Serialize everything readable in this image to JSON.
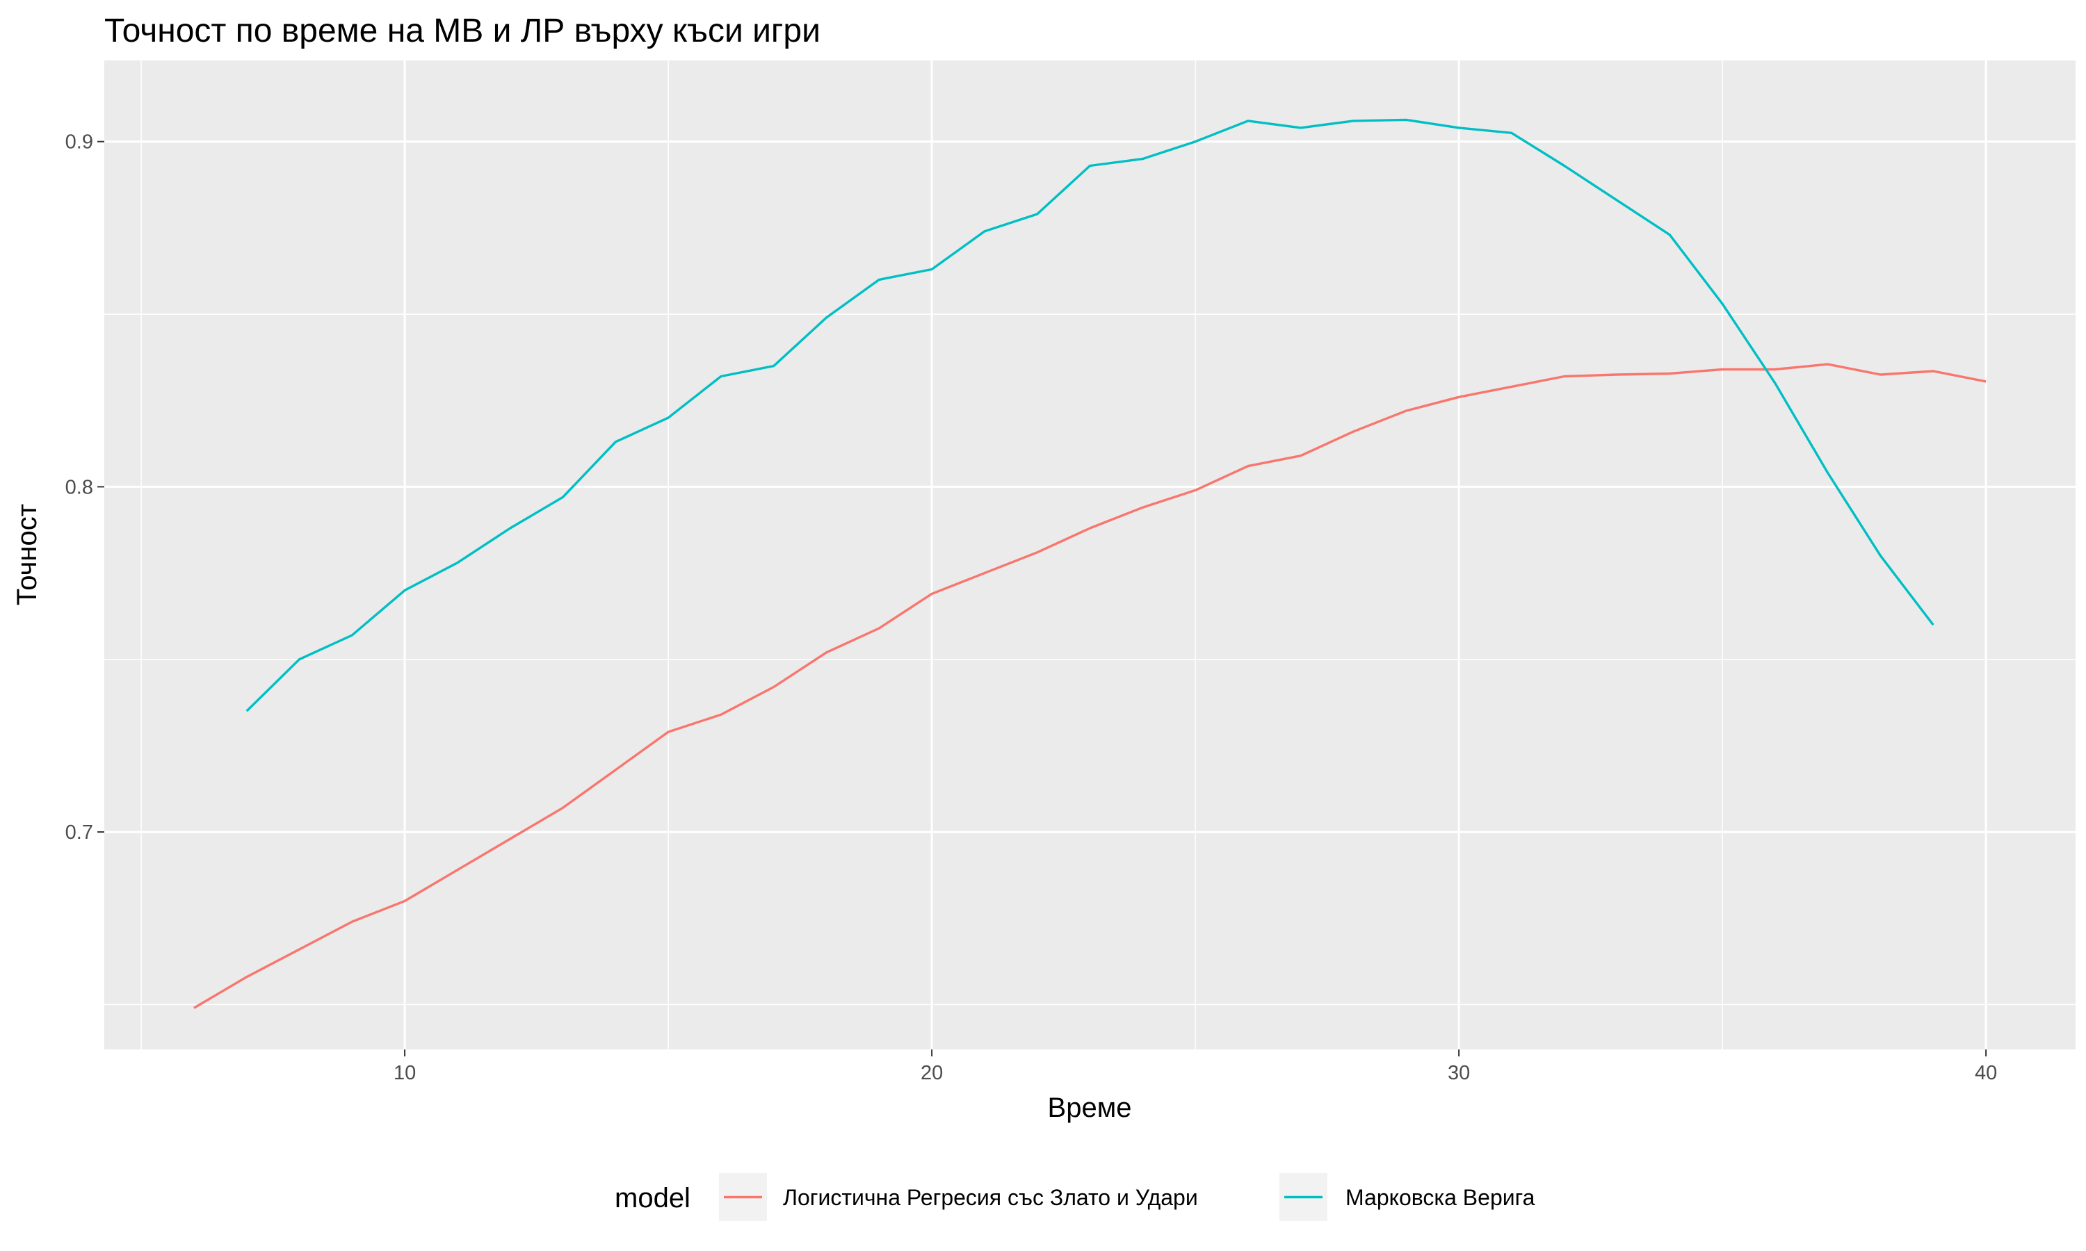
{
  "chart_data": {
    "type": "line",
    "title": "Точност по време на МВ и ЛР върху къси игри",
    "xlabel": "Време",
    "ylabel": "Точност",
    "xlim": [
      4.3,
      41.7
    ],
    "ylim": [
      0.637,
      0.9235
    ],
    "x_ticks": [
      10,
      20,
      30,
      40
    ],
    "x_tick_labels": [
      "10",
      "20",
      "30",
      "40"
    ],
    "y_ticks": [
      0.7,
      0.8,
      0.9
    ],
    "y_tick_labels": [
      "0.7",
      "0.8",
      "0.9"
    ],
    "x_minor_ticks": [
      5,
      15,
      25,
      35
    ],
    "y_minor_ticks": [
      0.65,
      0.75,
      0.85
    ],
    "grid": true,
    "legend_position": "bottom",
    "legend_title": "model",
    "series": [
      {
        "name": "Логистична Регресия със Злато и Удари",
        "color": "#F8766D",
        "x": [
          6,
          7,
          8,
          9,
          10,
          11,
          12,
          13,
          14,
          15,
          16,
          17,
          18,
          19,
          20,
          21,
          22,
          23,
          24,
          25,
          26,
          27,
          28,
          29,
          30,
          31,
          32,
          33,
          34,
          35,
          36,
          37,
          38,
          39,
          40
        ],
        "y": [
          0.649,
          0.658,
          0.666,
          0.674,
          0.68,
          0.689,
          0.698,
          0.707,
          0.718,
          0.729,
          0.734,
          0.742,
          0.752,
          0.759,
          0.769,
          0.775,
          0.781,
          0.788,
          0.794,
          0.799,
          0.806,
          0.809,
          0.816,
          0.822,
          0.826,
          0.829,
          0.832,
          0.8325,
          0.8328,
          0.834,
          0.834,
          0.8355,
          0.8325,
          0.8335,
          0.8305
        ]
      },
      {
        "name": "Марковска Верига",
        "color": "#00BFC4",
        "x": [
          7,
          8,
          9,
          10,
          11,
          12,
          13,
          14,
          15,
          16,
          17,
          18,
          19,
          20,
          21,
          22,
          23,
          24,
          25,
          26,
          27,
          28,
          29,
          30,
          31,
          32,
          33,
          34,
          35,
          36,
          37,
          38,
          39
        ],
        "y": [
          0.735,
          0.75,
          0.757,
          0.77,
          0.778,
          0.788,
          0.797,
          0.813,
          0.82,
          0.832,
          0.835,
          0.849,
          0.86,
          0.863,
          0.874,
          0.879,
          0.893,
          0.895,
          0.9,
          0.906,
          0.904,
          0.906,
          0.9063,
          0.904,
          0.9025,
          0.893,
          0.883,
          0.873,
          0.853,
          0.83,
          0.804,
          0.78,
          0.76
        ]
      }
    ]
  }
}
